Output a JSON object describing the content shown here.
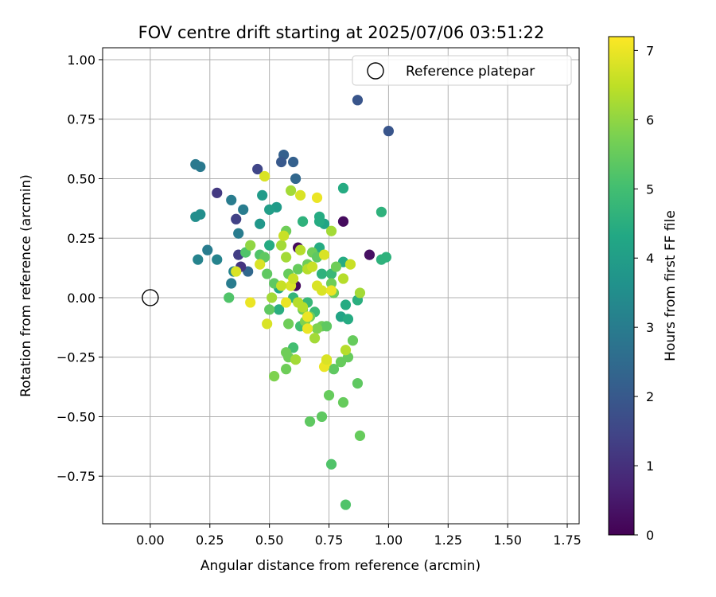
{
  "chart_data": {
    "type": "scatter",
    "title": "FOV centre drift starting at 2025/07/06 03:51:22",
    "xlabel": "Angular distance from reference (arcmin)",
    "ylabel": "Rotation from reference (arcmin)",
    "xlim": [
      -0.2,
      1.8
    ],
    "ylim": [
      -0.95,
      1.05
    ],
    "xticks": [
      "0.00",
      "0.25",
      "0.50",
      "0.75",
      "1.00",
      "1.25",
      "1.50",
      "1.75"
    ],
    "xtick_values": [
      0,
      0.25,
      0.5,
      0.75,
      1.0,
      1.25,
      1.5,
      1.75
    ],
    "yticks": [
      "−0.75",
      "−0.50",
      "−0.25",
      "0.00",
      "0.25",
      "0.50",
      "0.75",
      "1.00"
    ],
    "ytick_values": [
      -0.75,
      -0.5,
      -0.25,
      0,
      0.25,
      0.5,
      0.75,
      1.0
    ],
    "grid": true,
    "legend": {
      "position": "top-right",
      "entries": [
        {
          "label": "Reference platepar",
          "marker": "open-circle"
        }
      ]
    },
    "reference_point": {
      "x": 0,
      "y": 0
    },
    "colorbar": {
      "label": "Hours from first FF file",
      "range": [
        0,
        7.2
      ],
      "ticks": [
        "0",
        "1",
        "2",
        "3",
        "4",
        "5",
        "6",
        "7"
      ],
      "tick_values": [
        0,
        1,
        2,
        3,
        4,
        5,
        6,
        7
      ],
      "colormap": "viridis"
    },
    "series": [
      {
        "points": [
          {
            "x": 0.87,
            "y": 0.83,
            "c": 1.9
          },
          {
            "x": 1.0,
            "y": 0.7,
            "c": 1.9
          },
          {
            "x": 0.19,
            "y": 0.56,
            "c": 2.9
          },
          {
            "x": 0.21,
            "y": 0.55,
            "c": 2.9
          },
          {
            "x": 0.56,
            "y": 0.6,
            "c": 2.2
          },
          {
            "x": 0.6,
            "y": 0.57,
            "c": 2.2
          },
          {
            "x": 0.55,
            "y": 0.57,
            "c": 2.0
          },
          {
            "x": 0.45,
            "y": 0.54,
            "c": 1.5
          },
          {
            "x": 0.61,
            "y": 0.5,
            "c": 2.4
          },
          {
            "x": 0.28,
            "y": 0.44,
            "c": 1.2
          },
          {
            "x": 0.34,
            "y": 0.41,
            "c": 3.0
          },
          {
            "x": 0.39,
            "y": 0.37,
            "c": 3.0
          },
          {
            "x": 0.36,
            "y": 0.33,
            "c": 1.4
          },
          {
            "x": 0.19,
            "y": 0.34,
            "c": 3.5
          },
          {
            "x": 0.21,
            "y": 0.35,
            "c": 3.5
          },
          {
            "x": 0.37,
            "y": 0.27,
            "c": 3.0
          },
          {
            "x": 0.24,
            "y": 0.2,
            "c": 3.0
          },
          {
            "x": 0.2,
            "y": 0.16,
            "c": 3.2
          },
          {
            "x": 0.28,
            "y": 0.16,
            "c": 3.2
          },
          {
            "x": 0.37,
            "y": 0.18,
            "c": 1.3
          },
          {
            "x": 0.41,
            "y": 0.11,
            "c": 2.4
          },
          {
            "x": 0.35,
            "y": 0.11,
            "c": 3.2
          },
          {
            "x": 0.34,
            "y": 0.06,
            "c": 3.0
          },
          {
            "x": 0.38,
            "y": 0.13,
            "c": 1.1
          },
          {
            "x": 0.47,
            "y": 0.43,
            "c": 3.9
          },
          {
            "x": 0.53,
            "y": 0.38,
            "c": 3.9
          },
          {
            "x": 0.5,
            "y": 0.37,
            "c": 4.0
          },
          {
            "x": 0.46,
            "y": 0.31,
            "c": 3.8
          },
          {
            "x": 0.81,
            "y": 0.32,
            "c": 0.2
          },
          {
            "x": 0.92,
            "y": 0.18,
            "c": 0.3
          },
          {
            "x": 0.62,
            "y": 0.21,
            "c": 0.2
          },
          {
            "x": 0.61,
            "y": 0.05,
            "c": 0.2
          },
          {
            "x": 0.81,
            "y": 0.46,
            "c": 4.4
          },
          {
            "x": 0.97,
            "y": 0.36,
            "c": 4.6
          },
          {
            "x": 0.97,
            "y": 0.16,
            "c": 4.6
          },
          {
            "x": 0.99,
            "y": 0.17,
            "c": 4.6
          },
          {
            "x": 0.81,
            "y": 0.15,
            "c": 4.4
          },
          {
            "x": 0.71,
            "y": 0.34,
            "c": 4.4
          },
          {
            "x": 0.73,
            "y": 0.31,
            "c": 4.2
          },
          {
            "x": 0.71,
            "y": 0.32,
            "c": 4.4
          },
          {
            "x": 0.64,
            "y": 0.32,
            "c": 4.6
          },
          {
            "x": 0.5,
            "y": 0.22,
            "c": 4.4
          },
          {
            "x": 0.54,
            "y": 0.04,
            "c": 4.3
          },
          {
            "x": 0.54,
            "y": -0.05,
            "c": 4.5
          },
          {
            "x": 0.6,
            "y": 0.0,
            "c": 4.7
          },
          {
            "x": 0.66,
            "y": -0.02,
            "c": 4.8
          },
          {
            "x": 0.69,
            "y": -0.06,
            "c": 4.9
          },
          {
            "x": 0.82,
            "y": -0.03,
            "c": 4.4
          },
          {
            "x": 0.87,
            "y": -0.01,
            "c": 4.5
          },
          {
            "x": 0.8,
            "y": -0.08,
            "c": 4.2
          },
          {
            "x": 0.83,
            "y": -0.09,
            "c": 4.4
          },
          {
            "x": 0.72,
            "y": 0.1,
            "c": 4.6
          },
          {
            "x": 0.71,
            "y": 0.21,
            "c": 4.4
          },
          {
            "x": 0.76,
            "y": 0.1,
            "c": 4.8
          },
          {
            "x": 0.6,
            "y": -0.21,
            "c": 5.0
          },
          {
            "x": 0.63,
            "y": -0.12,
            "c": 5.0
          },
          {
            "x": 0.33,
            "y": 0.0,
            "c": 5.2
          },
          {
            "x": 0.4,
            "y": 0.19,
            "c": 5.2
          },
          {
            "x": 0.46,
            "y": 0.18,
            "c": 5.2
          },
          {
            "x": 0.48,
            "y": 0.17,
            "c": 5.4
          },
          {
            "x": 0.49,
            "y": 0.1,
            "c": 5.4
          },
          {
            "x": 0.5,
            "y": -0.05,
            "c": 5.4
          },
          {
            "x": 0.52,
            "y": 0.06,
            "c": 5.4
          },
          {
            "x": 0.57,
            "y": 0.28,
            "c": 5.6
          },
          {
            "x": 0.58,
            "y": 0.1,
            "c": 5.5
          },
          {
            "x": 0.62,
            "y": 0.12,
            "c": 5.5
          },
          {
            "x": 0.66,
            "y": 0.14,
            "c": 5.6
          },
          {
            "x": 0.68,
            "y": 0.19,
            "c": 5.6
          },
          {
            "x": 0.7,
            "y": 0.17,
            "c": 5.4
          },
          {
            "x": 0.72,
            "y": -0.12,
            "c": 5.6
          },
          {
            "x": 0.74,
            "y": -0.12,
            "c": 5.4
          },
          {
            "x": 0.76,
            "y": 0.06,
            "c": 5.6
          },
          {
            "x": 0.77,
            "y": 0.02,
            "c": 5.6
          },
          {
            "x": 0.78,
            "y": 0.13,
            "c": 5.6
          },
          {
            "x": 0.8,
            "y": -0.27,
            "c": 5.5
          },
          {
            "x": 0.77,
            "y": -0.3,
            "c": 5.4
          },
          {
            "x": 0.83,
            "y": -0.25,
            "c": 5.5
          },
          {
            "x": 0.85,
            "y": -0.18,
            "c": 5.5
          },
          {
            "x": 0.87,
            "y": -0.36,
            "c": 5.4
          },
          {
            "x": 0.88,
            "y": -0.58,
            "c": 5.5
          },
          {
            "x": 0.81,
            "y": -0.44,
            "c": 5.5
          },
          {
            "x": 0.75,
            "y": -0.41,
            "c": 5.5
          },
          {
            "x": 0.72,
            "y": -0.5,
            "c": 5.4
          },
          {
            "x": 0.67,
            "y": -0.52,
            "c": 5.4
          },
          {
            "x": 0.76,
            "y": -0.7,
            "c": 5.2
          },
          {
            "x": 0.82,
            "y": -0.87,
            "c": 5.2
          },
          {
            "x": 0.57,
            "y": -0.3,
            "c": 5.6
          },
          {
            "x": 0.52,
            "y": -0.33,
            "c": 5.8
          },
          {
            "x": 0.58,
            "y": -0.25,
            "c": 5.6
          },
          {
            "x": 0.57,
            "y": -0.23,
            "c": 5.6
          },
          {
            "x": 0.58,
            "y": -0.11,
            "c": 5.6
          },
          {
            "x": 0.64,
            "y": -0.05,
            "c": 5.6
          },
          {
            "x": 0.65,
            "y": -0.1,
            "c": 5.8
          },
          {
            "x": 0.67,
            "y": -0.08,
            "c": 5.6
          },
          {
            "x": 0.7,
            "y": -0.13,
            "c": 5.8
          },
          {
            "x": 0.61,
            "y": -0.26,
            "c": 6.2
          },
          {
            "x": 0.62,
            "y": -0.02,
            "c": 6.4
          },
          {
            "x": 0.63,
            "y": 0.2,
            "c": 6.4
          },
          {
            "x": 0.66,
            "y": 0.12,
            "c": 6.4
          },
          {
            "x": 0.57,
            "y": 0.17,
            "c": 6.2
          },
          {
            "x": 0.55,
            "y": 0.22,
            "c": 6.2
          },
          {
            "x": 0.56,
            "y": 0.26,
            "c": 6.6
          },
          {
            "x": 0.59,
            "y": 0.45,
            "c": 6.2
          },
          {
            "x": 0.48,
            "y": 0.51,
            "c": 6.8
          },
          {
            "x": 0.63,
            "y": 0.43,
            "c": 6.8
          },
          {
            "x": 0.7,
            "y": 0.42,
            "c": 7.0
          },
          {
            "x": 0.76,
            "y": 0.28,
            "c": 6.2
          },
          {
            "x": 0.42,
            "y": 0.22,
            "c": 6.0
          },
          {
            "x": 0.49,
            "y": -0.11,
            "c": 6.8
          },
          {
            "x": 0.51,
            "y": 0.0,
            "c": 6.2
          },
          {
            "x": 0.57,
            "y": -0.02,
            "c": 7.0
          },
          {
            "x": 0.59,
            "y": 0.05,
            "c": 6.8
          },
          {
            "x": 0.6,
            "y": 0.08,
            "c": 6.6
          },
          {
            "x": 0.64,
            "y": -0.04,
            "c": 6.4
          },
          {
            "x": 0.66,
            "y": -0.13,
            "c": 7.0
          },
          {
            "x": 0.66,
            "y": -0.08,
            "c": 7.0
          },
          {
            "x": 0.68,
            "y": 0.13,
            "c": 6.6
          },
          {
            "x": 0.7,
            "y": 0.05,
            "c": 6.8
          },
          {
            "x": 0.72,
            "y": 0.03,
            "c": 6.8
          },
          {
            "x": 0.73,
            "y": 0.18,
            "c": 6.8
          },
          {
            "x": 0.73,
            "y": -0.29,
            "c": 7.0
          },
          {
            "x": 0.74,
            "y": -0.27,
            "c": 7.0
          },
          {
            "x": 0.76,
            "y": 0.03,
            "c": 7.0
          },
          {
            "x": 0.81,
            "y": 0.08,
            "c": 6.4
          },
          {
            "x": 0.82,
            "y": -0.22,
            "c": 6.4
          },
          {
            "x": 0.84,
            "y": 0.14,
            "c": 6.6
          },
          {
            "x": 0.88,
            "y": 0.02,
            "c": 6.2
          },
          {
            "x": 0.36,
            "y": 0.11,
            "c": 6.8
          },
          {
            "x": 0.42,
            "y": -0.02,
            "c": 7.0
          },
          {
            "x": 0.46,
            "y": 0.14,
            "c": 6.8
          },
          {
            "x": 0.55,
            "y": 0.05,
            "c": 6.6
          },
          {
            "x": 0.69,
            "y": -0.17,
            "c": 6.2
          },
          {
            "x": 0.74,
            "y": -0.26,
            "c": 6.8
          }
        ]
      }
    ]
  }
}
